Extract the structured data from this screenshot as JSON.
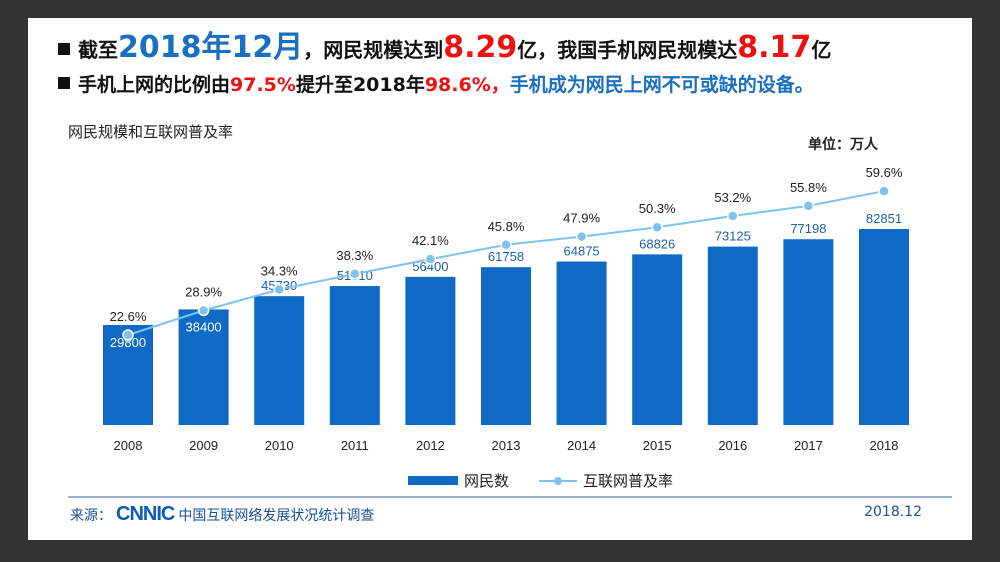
{
  "headline": {
    "l1_a": "截至",
    "l1_date": "2018年12月",
    "l1_b": "，网民规模达到",
    "l1_n1": "8.29",
    "l1_c": "亿，我国手机网民规模达",
    "l1_n2": "8.17",
    "l1_d": "亿",
    "l2_a": "手机上网的比例由",
    "l2_p1": "97.5%",
    "l2_b": "提升至2018年",
    "l2_p2": "98.6%，",
    "l2_c": "手机成为网民上网不可或缺的设备。"
  },
  "watermark": "CNNIC",
  "footer": {
    "source_label": "来源：",
    "logo": "CNNIC",
    "source_name": "中国互联网络发展状况统计调查",
    "date": "2018.12"
  },
  "colors": {
    "bar": "#0e6ac4",
    "line": "#7dc3ec",
    "label_bar": "#1f5fa8"
  },
  "chart_data": {
    "type": "bar",
    "title": "网民规模和互联网普及率",
    "unit": "单位：万人",
    "categories": [
      "2008",
      "2009",
      "2010",
      "2011",
      "2012",
      "2013",
      "2014",
      "2015",
      "2016",
      "2017",
      "2018"
    ],
    "series": [
      {
        "name": "网民数",
        "type": "bar",
        "values": [
          29800,
          38400,
          45730,
          51310,
          56400,
          61758,
          64875,
          68826,
          73125,
          77198,
          82851
        ]
      },
      {
        "name": "互联网普及率",
        "type": "line",
        "values": [
          22.6,
          28.9,
          34.3,
          38.3,
          42.1,
          45.8,
          47.9,
          50.3,
          53.2,
          55.8,
          59.6
        ],
        "labels": [
          "22.6%",
          "28.9%",
          "34.3%",
          "38.3%",
          "42.1%",
          "45.8%",
          "47.9%",
          "50.3%",
          "53.2%",
          "55.8%",
          "59.6%"
        ]
      }
    ],
    "bar_ylim": [
      -25470,
      90000
    ],
    "line_ylim": [
      0,
      70
    ],
    "legend": "bottom",
    "grid": false
  }
}
